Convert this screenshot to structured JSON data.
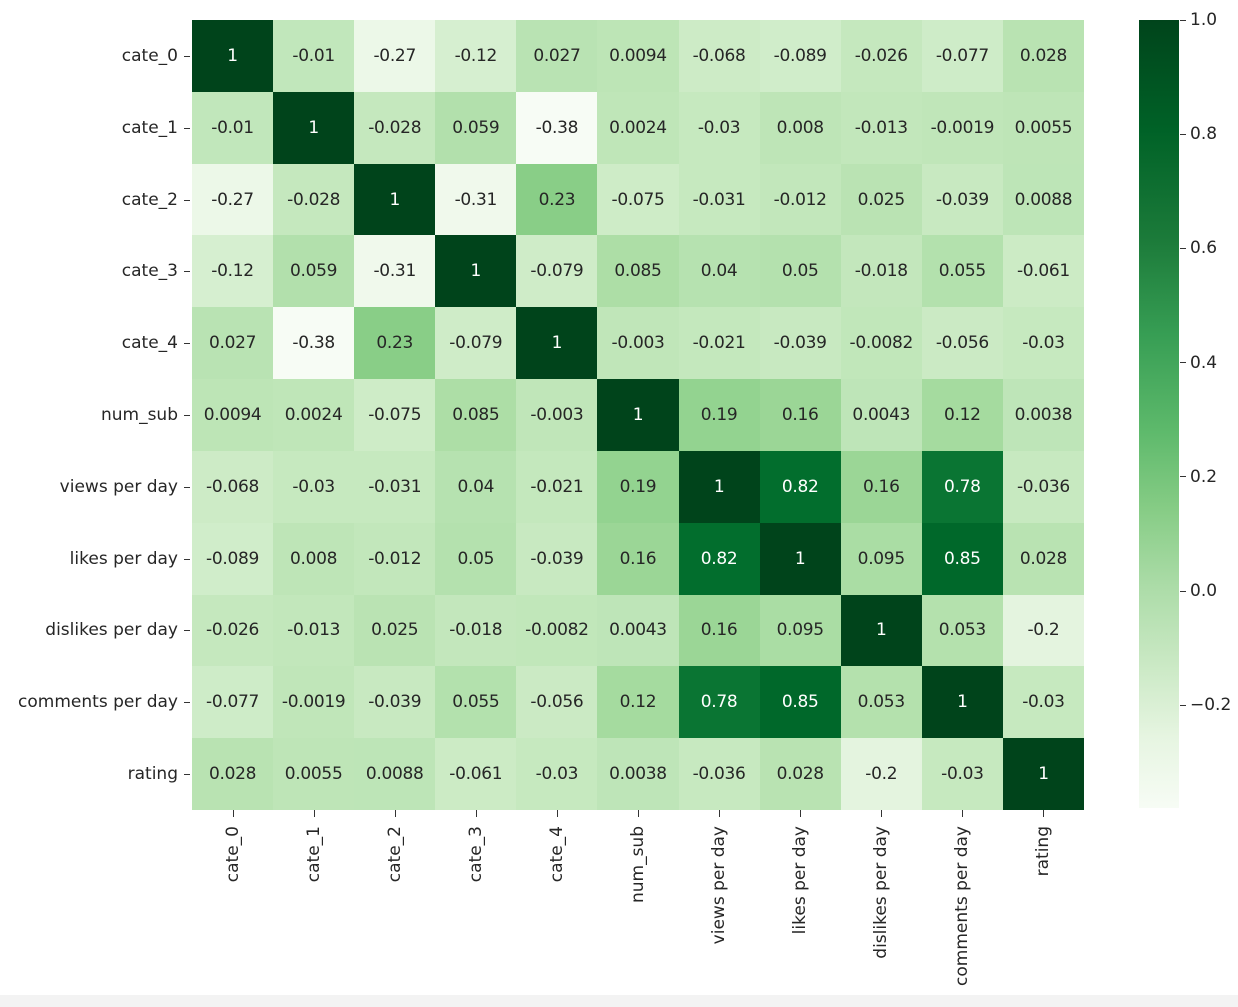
{
  "chart_data": {
    "type": "heatmap",
    "title": "",
    "xlabel": "",
    "ylabel": "",
    "colormap": "Greens",
    "labels": [
      "cate_0",
      "cate_1",
      "cate_2",
      "cate_3",
      "cate_4",
      "num_sub",
      "views per day",
      "likes per day",
      "dislikes per day",
      "comments per day",
      "rating"
    ],
    "matrix": [
      [
        "1",
        "-0.01",
        "-0.27",
        "-0.12",
        "0.027",
        "0.0094",
        "-0.068",
        "-0.089",
        "-0.026",
        "-0.077",
        "0.028"
      ],
      [
        "-0.01",
        "1",
        "-0.028",
        "0.059",
        "-0.38",
        "0.0024",
        "-0.03",
        "0.008",
        "-0.013",
        "-0.0019",
        "0.0055"
      ],
      [
        "-0.27",
        "-0.028",
        "1",
        "-0.31",
        "0.23",
        "-0.075",
        "-0.031",
        "-0.012",
        "0.025",
        "-0.039",
        "0.0088"
      ],
      [
        "-0.12",
        "0.059",
        "-0.31",
        "1",
        "-0.079",
        "0.085",
        "0.04",
        "0.05",
        "-0.018",
        "0.055",
        "-0.061"
      ],
      [
        "0.027",
        "-0.38",
        "0.23",
        "-0.079",
        "1",
        "-0.003",
        "-0.021",
        "-0.039",
        "-0.0082",
        "-0.056",
        "-0.03"
      ],
      [
        "0.0094",
        "0.0024",
        "-0.075",
        "0.085",
        "-0.003",
        "1",
        "0.19",
        "0.16",
        "0.0043",
        "0.12",
        "0.0038"
      ],
      [
        "-0.068",
        "-0.03",
        "-0.031",
        "0.04",
        "-0.021",
        "0.19",
        "1",
        "0.82",
        "0.16",
        "0.78",
        "-0.036"
      ],
      [
        "-0.089",
        "0.008",
        "-0.012",
        "0.05",
        "-0.039",
        "0.16",
        "0.82",
        "1",
        "0.095",
        "0.85",
        "0.028"
      ],
      [
        "-0.026",
        "-0.013",
        "0.025",
        "-0.018",
        "-0.0082",
        "0.0043",
        "0.16",
        "0.095",
        "1",
        "0.053",
        "-0.2"
      ],
      [
        "-0.077",
        "-0.0019",
        "-0.039",
        "0.055",
        "-0.056",
        "0.12",
        "0.78",
        "0.85",
        "0.053",
        "1",
        "-0.03"
      ],
      [
        "0.028",
        "0.0055",
        "0.0088",
        "-0.061",
        "-0.03",
        "0.0038",
        "-0.036",
        "0.028",
        "-0.2",
        "-0.03",
        "1"
      ]
    ],
    "colorbar": {
      "range": [
        -0.38,
        1.0
      ],
      "ticks": [
        "1.0",
        "0.8",
        "0.6",
        "0.4",
        "0.2",
        "0.0",
        "−0.2"
      ],
      "tick_values": [
        1.0,
        0.8,
        0.6,
        0.4,
        0.2,
        0.0,
        -0.2
      ]
    },
    "colors": {
      "high": "#00441b",
      "low": "#f7fcf5",
      "text_dark": "#262626",
      "text_light": "#ffffff"
    }
  }
}
